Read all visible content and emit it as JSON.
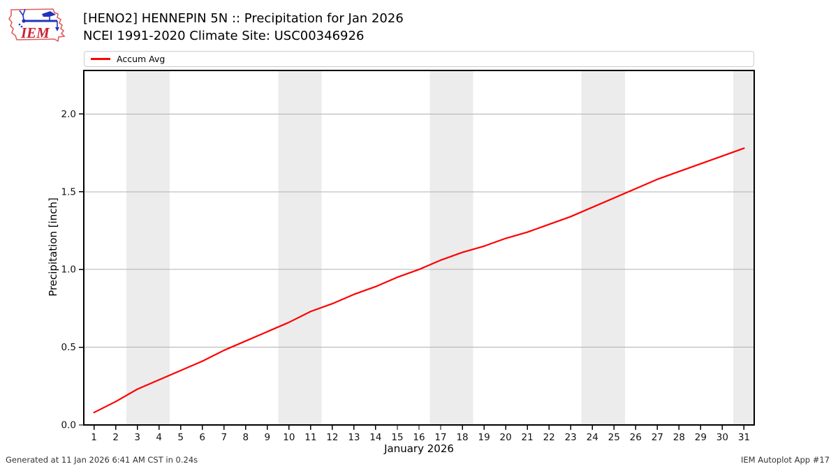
{
  "header": {
    "title_line1": "[HENO2] HENNEPIN 5N :: Precipitation for Jan 2026",
    "title_line2": "NCEI 1991-2020 Climate Site: USC00346926",
    "logo_text": "IEM"
  },
  "legend": {
    "items": [
      {
        "label": "Accum Avg",
        "color": "#ff0000"
      }
    ]
  },
  "chart_data": {
    "type": "line",
    "title": "[HENO2] HENNEPIN 5N :: Precipitation for Jan 2026",
    "subtitle": "NCEI 1991-2020 Climate Site: USC00346926",
    "xlabel": "January 2026",
    "ylabel": "Precipitation [inch]",
    "x": [
      1,
      2,
      3,
      4,
      5,
      6,
      7,
      8,
      9,
      10,
      11,
      12,
      13,
      14,
      15,
      16,
      17,
      18,
      19,
      20,
      21,
      22,
      23,
      24,
      25,
      26,
      27,
      28,
      29,
      30,
      31
    ],
    "series": [
      {
        "name": "Accum Avg",
        "color": "#ff0000",
        "values": [
          0.08,
          0.15,
          0.23,
          0.29,
          0.35,
          0.41,
          0.48,
          0.54,
          0.6,
          0.66,
          0.73,
          0.78,
          0.84,
          0.89,
          0.95,
          1.0,
          1.06,
          1.11,
          1.15,
          1.2,
          1.24,
          1.29,
          1.34,
          1.4,
          1.46,
          1.52,
          1.58,
          1.63,
          1.68,
          1.73,
          1.78
        ]
      }
    ],
    "xlim": [
      0.53,
      31.47
    ],
    "ylim": [
      0,
      2.28
    ],
    "xticks": [
      1,
      2,
      3,
      4,
      5,
      6,
      7,
      8,
      9,
      10,
      11,
      12,
      13,
      14,
      15,
      16,
      17,
      18,
      19,
      20,
      21,
      22,
      23,
      24,
      25,
      26,
      27,
      28,
      29,
      30,
      31
    ],
    "yticks": [
      0.0,
      0.5,
      1.0,
      1.5,
      2.0
    ],
    "ytick_labels": [
      "0.0",
      "0.5",
      "1.0",
      "1.5",
      "2.0"
    ],
    "grid": "horizontal",
    "gridline_color": "#b0b0b0",
    "weekend_bands": [
      [
        2.5,
        4.5
      ],
      [
        9.5,
        11.5
      ],
      [
        16.5,
        18.5
      ],
      [
        23.5,
        25.5
      ],
      [
        30.5,
        31.47
      ]
    ],
    "band_color": "#ececec",
    "frame_color": "#000000",
    "legend_position": "top"
  },
  "footer": {
    "left": "Generated at 11 Jan 2026 6:41 AM CST in 0.24s",
    "right": "IEM Autoplot App #17"
  }
}
